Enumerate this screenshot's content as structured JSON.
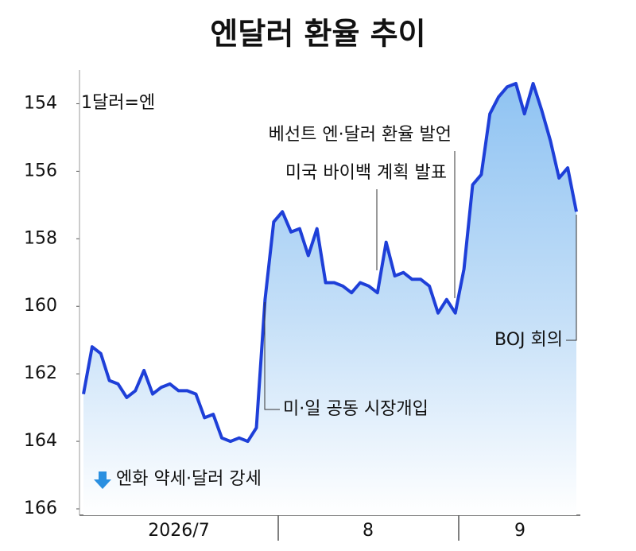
{
  "chart_data": {
    "type": "line",
    "title": "엔달러 환율 추이",
    "unit_label": "1달러=엔",
    "direction_label": "엔화 약세·달러 강세",
    "annotations": [
      "베선트 엔·달러 환율 발언",
      "미국 바이백 계획 발표",
      "미·일 공동 시장개입",
      "BOJ 회의"
    ],
    "x_labels": [
      "2026/7",
      "8",
      "9"
    ],
    "color": "#1e3fd8",
    "ylim": [
      166,
      153
    ],
    "yticks": [
      154,
      156,
      158,
      160,
      162,
      164,
      166
    ],
    "values": [
      162.6,
      161.2,
      161.4,
      162.2,
      162.3,
      162.7,
      162.5,
      161.9,
      162.6,
      162.4,
      162.3,
      162.5,
      162.5,
      162.6,
      163.3,
      163.2,
      163.9,
      164.0,
      163.9,
      164.0,
      163.6,
      159.8,
      157.5,
      157.2,
      157.8,
      157.7,
      158.5,
      157.7,
      159.3,
      159.3,
      159.4,
      159.6,
      159.3,
      159.4,
      159.6,
      158.1,
      159.1,
      159.0,
      159.2,
      159.2,
      159.4,
      160.2,
      159.8,
      160.2,
      158.9,
      156.4,
      156.1,
      154.3,
      153.8,
      153.5,
      153.4,
      154.3,
      153.4,
      154.2,
      155.1,
      156.2,
      155.9,
      157.2
    ]
  }
}
